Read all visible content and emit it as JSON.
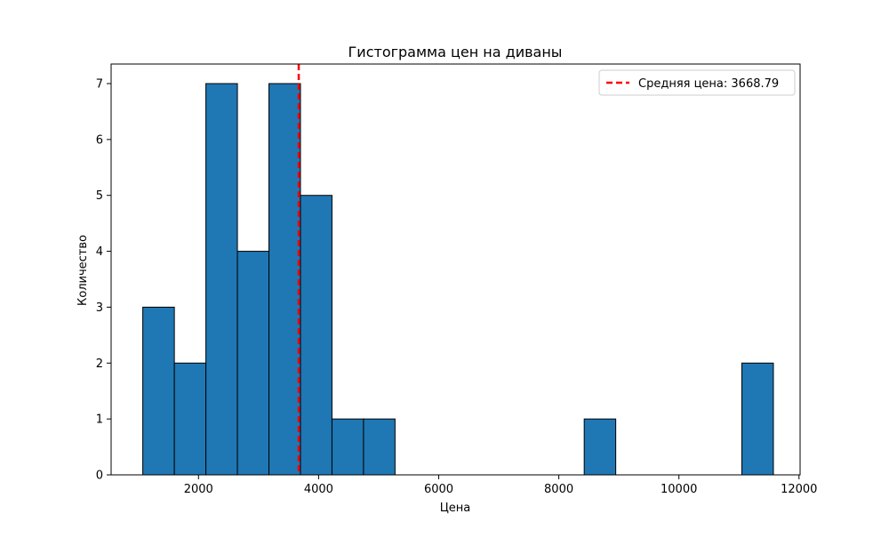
{
  "chart_data": {
    "type": "bar",
    "title": "Гистограмма цен на диваны",
    "xlabel": "Цена",
    "ylabel": "Количество",
    "xlim": [
      545,
      12018
    ],
    "ylim": [
      0,
      7.35
    ],
    "xticks": [
      2000,
      4000,
      6000,
      8000,
      10000,
      12000
    ],
    "yticks": [
      0,
      1,
      2,
      3,
      4,
      5,
      6,
      7
    ],
    "bins": [
      {
        "start": 1072,
        "end": 1598,
        "count": 3
      },
      {
        "start": 1598,
        "end": 2123,
        "count": 2
      },
      {
        "start": 2123,
        "end": 2648,
        "count": 7
      },
      {
        "start": 2648,
        "end": 3173,
        "count": 4
      },
      {
        "start": 3173,
        "end": 3698,
        "count": 7
      },
      {
        "start": 3698,
        "end": 4223,
        "count": 5
      },
      {
        "start": 4223,
        "end": 4748,
        "count": 1
      },
      {
        "start": 4748,
        "end": 5273,
        "count": 1
      },
      {
        "start": 5273,
        "end": 5798,
        "count": 0
      },
      {
        "start": 5798,
        "end": 6323,
        "count": 0
      },
      {
        "start": 6323,
        "end": 6848,
        "count": 0
      },
      {
        "start": 6848,
        "end": 7373,
        "count": 0
      },
      {
        "start": 7373,
        "end": 7898,
        "count": 0
      },
      {
        "start": 7898,
        "end": 8423,
        "count": 0
      },
      {
        "start": 8423,
        "end": 8948,
        "count": 1
      },
      {
        "start": 8948,
        "end": 9473,
        "count": 0
      },
      {
        "start": 9473,
        "end": 9998,
        "count": 0
      },
      {
        "start": 9998,
        "end": 10523,
        "count": 0
      },
      {
        "start": 10523,
        "end": 11048,
        "count": 0
      },
      {
        "start": 11048,
        "end": 11573,
        "count": 2
      }
    ],
    "mean_line": {
      "value": 3668.79,
      "label": "Средняя цена: 3668.79"
    },
    "legend_position": "top-right",
    "grid": false,
    "colors": {
      "bar_fill": "#1f77b4",
      "bar_edge": "#000000",
      "mean_line": "#ff0000"
    }
  }
}
